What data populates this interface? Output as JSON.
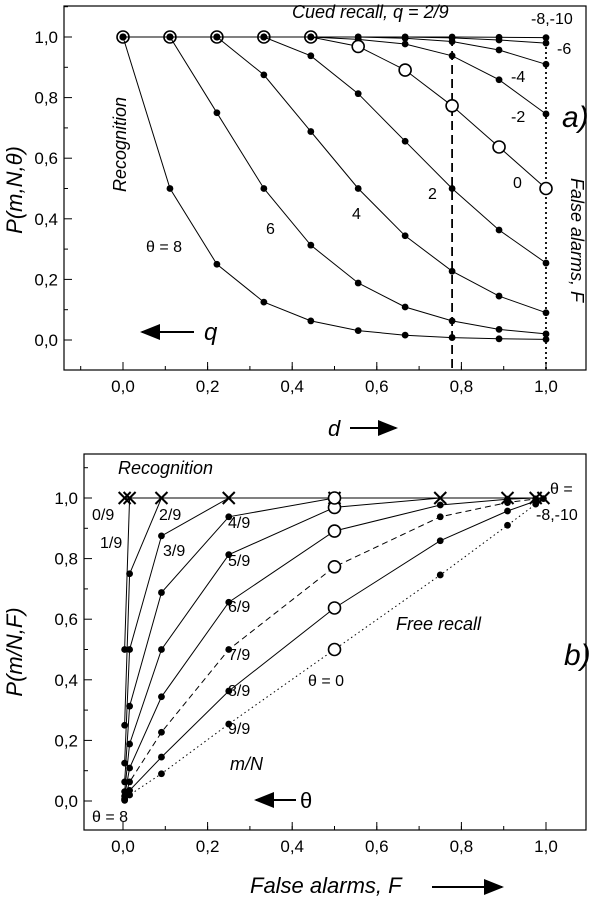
{
  "chart_data": [
    {
      "type": "line",
      "panel_label": "a)",
      "ylabel": "P(m,N,θ)",
      "xlabel": "d",
      "xlim": [
        -0.1,
        1.1
      ],
      "ylim": [
        -0.05,
        1.1
      ],
      "x_ticks": [
        "0,0",
        "0,2",
        "0,4",
        "0,6",
        "0,8",
        "1,0"
      ],
      "y_ticks": [
        "0,0",
        "0,2",
        "0,4",
        "0,6",
        "0,8",
        "1,0"
      ],
      "x": [
        0,
        0.111,
        0.222,
        0.333,
        0.444,
        0.556,
        0.667,
        0.778,
        0.889,
        1.0
      ],
      "series": [
        {
          "name": "θ = 8",
          "values": [
            1.0,
            0.5,
            0.25,
            0.125,
            0.063,
            0.031,
            0.016,
            0.008,
            0.004,
            0.002
          ]
        },
        {
          "name": "6",
          "values": [
            1.0,
            1.0,
            0.75,
            0.5,
            0.313,
            0.188,
            0.109,
            0.063,
            0.035,
            0.02
          ]
        },
        {
          "name": "4",
          "values": [
            1.0,
            1.0,
            1.0,
            0.875,
            0.688,
            0.5,
            0.344,
            0.227,
            0.145,
            0.09
          ]
        },
        {
          "name": "2",
          "values": [
            1.0,
            1.0,
            1.0,
            1.0,
            0.938,
            0.813,
            0.656,
            0.5,
            0.363,
            0.254
          ]
        },
        {
          "name": "-2",
          "values": [
            1.0,
            1.0,
            1.0,
            1.0,
            1.0,
            0.992,
            0.977,
            0.938,
            0.859,
            0.746
          ]
        },
        {
          "name": "-4",
          "values": [
            1.0,
            1.0,
            1.0,
            1.0,
            1.0,
            1.0,
            0.996,
            0.985,
            0.957,
            0.91
          ]
        },
        {
          "name": "-6",
          "values": [
            1.0,
            1.0,
            1.0,
            1.0,
            1.0,
            1.0,
            1.0,
            0.997,
            0.99,
            0.98
          ]
        },
        {
          "name": "-8,-10",
          "values": [
            1.0,
            1.0,
            1.0,
            1.0,
            1.0,
            1.0,
            1.0,
            1.0,
            0.999,
            0.998
          ]
        }
      ],
      "open_circle_series": {
        "name": "0",
        "values": [
          1.0,
          1.0,
          1.0,
          1.0,
          1.0,
          0.969,
          0.891,
          0.773,
          0.637,
          0.5
        ]
      },
      "vlines": [
        {
          "x": 0.778,
          "style": "dashed"
        },
        {
          "x": 1.0,
          "style": "dotted"
        }
      ],
      "annotations": {
        "title": "Cued recall, q = 2/9",
        "recognition": "Recognition",
        "false_alarms": "False alarms, F",
        "arrow_q": "q",
        "label_theta8": "θ = 8",
        "label_6": "6",
        "label_4": "4",
        "label_2": "2",
        "label_0": "0",
        "label_m2": "-2",
        "label_m4": "-4",
        "label_m6": "-6",
        "label_m8": "-8,-10"
      }
    },
    {
      "type": "line",
      "panel_label": "b)",
      "ylabel": "P(m/N,F)",
      "xlabel": "False alarms, F",
      "xlim": [
        -0.1,
        1.1
      ],
      "ylim": [
        -0.05,
        1.1
      ],
      "x_ticks": [
        "0,0",
        "0,2",
        "0,4",
        "0,6",
        "0,8",
        "1,0"
      ],
      "y_ticks": [
        "0,0",
        "0,2",
        "0,4",
        "0,6",
        "0,8",
        "1,0"
      ],
      "theta_points": [
        {
          "theta": 8,
          "F": 0.0039
        },
        {
          "theta": 6,
          "F": 0.0156
        },
        {
          "theta": 4,
          "F": 0.0909
        },
        {
          "theta": 2,
          "F": 0.25
        },
        {
          "theta": 0,
          "F": 0.5
        },
        {
          "theta": -2,
          "F": 0.75
        },
        {
          "theta": -4,
          "F": 0.909
        },
        {
          "theta": -6,
          "F": 0.9756
        },
        {
          "theta": -8,
          "F": 0.9939
        }
      ],
      "series": [
        {
          "name": "0/9",
          "values": [
            1,
            1,
            1,
            1,
            1,
            1,
            1,
            1,
            1
          ]
        },
        {
          "name": "1/9",
          "values": [
            0.5,
            1,
            1,
            1,
            1,
            1,
            1,
            1,
            1
          ]
        },
        {
          "name": "2/9",
          "values": [
            0.25,
            0.75,
            1,
            1,
            1,
            1,
            1,
            1,
            1
          ]
        },
        {
          "name": "3/9",
          "values": [
            0.125,
            0.5,
            0.875,
            1,
            1,
            1,
            1,
            1,
            1
          ]
        },
        {
          "name": "4/9",
          "values": [
            0.063,
            0.313,
            0.688,
            0.938,
            1,
            1,
            1,
            1,
            1
          ]
        },
        {
          "name": "5/9",
          "values": [
            0.031,
            0.188,
            0.5,
            0.813,
            0.969,
            1,
            1,
            1,
            1
          ]
        },
        {
          "name": "6/9",
          "values": [
            0.016,
            0.109,
            0.344,
            0.656,
            0.891,
            0.977,
            0.996,
            1,
            1
          ]
        },
        {
          "name": "7/9",
          "values": [
            0.008,
            0.063,
            0.227,
            0.5,
            0.773,
            0.938,
            0.985,
            0.997,
            1
          ]
        },
        {
          "name": "8/9",
          "values": [
            0.004,
            0.035,
            0.145,
            0.363,
            0.637,
            0.859,
            0.957,
            0.99,
            0.999
          ]
        },
        {
          "name": "9/9",
          "values": [
            0.002,
            0.02,
            0.09,
            0.254,
            0.5,
            0.746,
            0.91,
            0.98,
            0.998
          ]
        }
      ],
      "annotations": {
        "recognition": "Recognition",
        "free_recall": "Free recall",
        "mN": "m/N",
        "theta_arrow": "θ",
        "theta8": "θ  = 8",
        "theta0": "θ  = 0",
        "theta_eq": "θ  =",
        "theta_m8": "-8,-10"
      }
    }
  ]
}
